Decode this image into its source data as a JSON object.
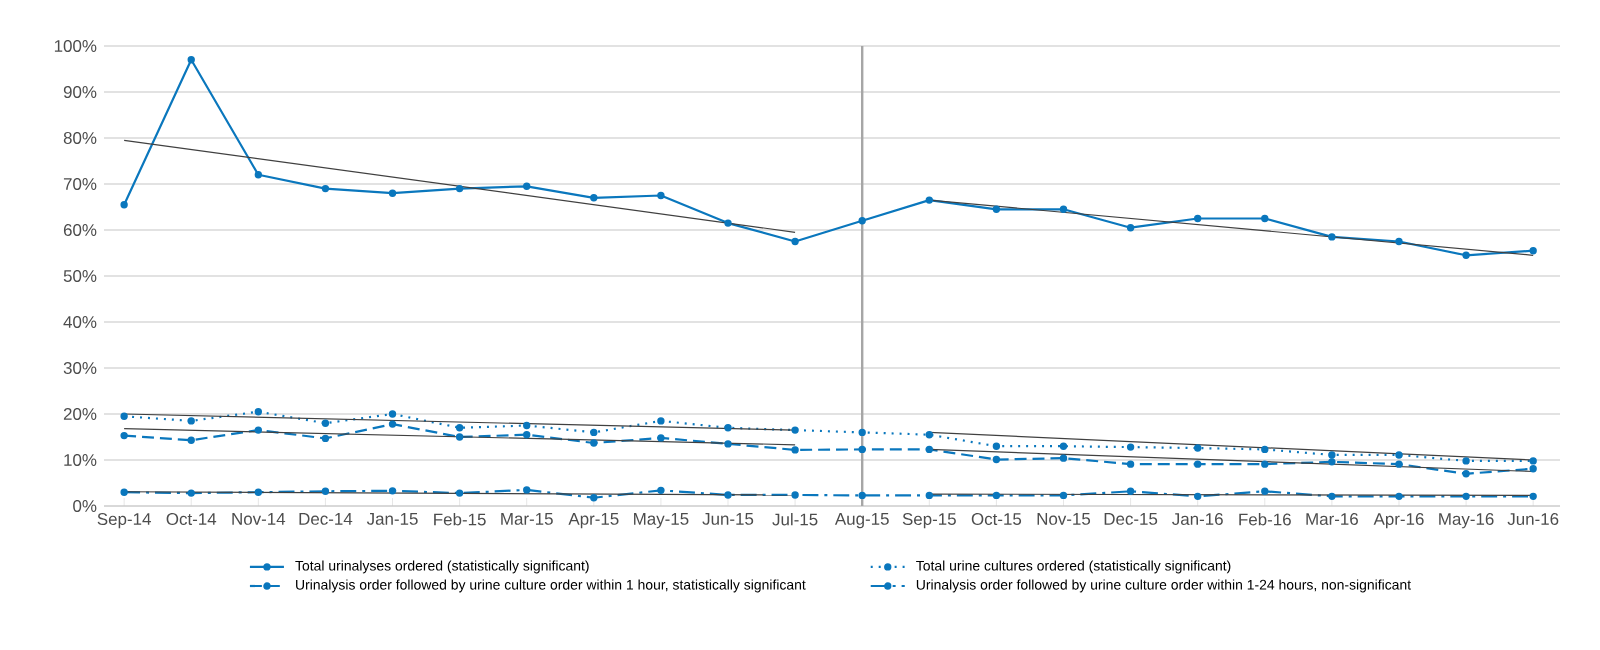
{
  "chart_data": {
    "type": "line",
    "categories": [
      "Sep-14",
      "Oct-14",
      "Nov-14",
      "Dec-14",
      "Jan-15",
      "Feb-15",
      "Mar-15",
      "Apr-15",
      "May-15",
      "Jun-15",
      "Jul-15",
      "Aug-15",
      "Sep-15",
      "Oct-15",
      "Nov-15",
      "Dec-15",
      "Jan-16",
      "Feb-16",
      "Mar-16",
      "Apr-16",
      "May-16",
      "Jun-16"
    ],
    "series": [
      {
        "name": "Total urinalyses ordered (statistically significant)",
        "color": "#0a77bd",
        "line_style": "solid",
        "marker": "circle",
        "values": [
          65.5,
          97,
          72,
          69,
          68,
          69,
          69.5,
          67,
          67.5,
          61.5,
          57.5,
          62,
          66.5,
          64.5,
          64.5,
          60.5,
          62.5,
          62.5,
          58.5,
          57.5,
          54.5,
          55.5
        ]
      },
      {
        "name": "Total urine cultures ordered (statistically significant)",
        "color": "#0a77bd",
        "line_style": "dotted",
        "marker": "circle",
        "values": [
          19.5,
          18.5,
          20.5,
          18,
          20,
          17,
          17.5,
          16,
          18.5,
          17,
          16.5,
          16,
          15.5,
          13,
          13,
          12.8,
          12.6,
          12.3,
          11.1,
          11.1,
          9.8,
          9.8
        ]
      },
      {
        "name": "Urinalysis order followed by urine culture order within 1 hour, statistically significant",
        "color": "#0a77bd",
        "line_style": "dashed",
        "marker": "circle",
        "values": [
          15.3,
          14.3,
          16.5,
          14.7,
          17.8,
          15,
          15.5,
          13.7,
          14.8,
          13.5,
          12.2,
          12.3,
          12.3,
          10.1,
          10.4,
          9.1,
          9.1,
          9.1,
          9.6,
          9.1,
          7,
          8.1
        ]
      },
      {
        "name": "Urinalysis order followed by urine culture order within 1-24 hours, non-significant",
        "color": "#0a77bd",
        "line_style": "dashdot",
        "marker": "circle",
        "values": [
          3,
          2.8,
          3,
          3.2,
          3.3,
          2.8,
          3.5,
          1.8,
          3.4,
          2.4,
          2.4,
          2.3,
          2.3,
          2.3,
          2.3,
          3.2,
          2.1,
          3.2,
          2.1,
          2.1,
          2.1,
          2.1
        ]
      },
      {
        "type": "line",
        "color": "#404040",
        "line_style": "solid",
        "marker": "none",
        "x": [
          "Sep-14",
          "Jul-15"
        ],
        "values": [
          79.5,
          59.5
        ]
      },
      {
        "type": "line",
        "color": "#404040",
        "line_style": "solid",
        "marker": "none",
        "x": [
          "Sep-15",
          "Jun-16"
        ],
        "values": [
          66.5,
          54.5
        ]
      },
      {
        "type": "line",
        "color": "#404040",
        "line_style": "solid",
        "marker": "none",
        "x": [
          "Sep-14",
          "Jul-15"
        ],
        "values": [
          20,
          16.5
        ]
      },
      {
        "type": "line",
        "color": "#404040",
        "line_style": "solid",
        "marker": "none",
        "x": [
          "Sep-15",
          "Jun-16"
        ],
        "values": [
          16,
          10
        ]
      },
      {
        "type": "line",
        "color": "#404040",
        "line_style": "solid",
        "marker": "none",
        "x": [
          "Sep-14",
          "Jul-15"
        ],
        "values": [
          16.8,
          13.3
        ]
      },
      {
        "type": "line",
        "color": "#404040",
        "line_style": "solid",
        "marker": "none",
        "x": [
          "Sep-15",
          "Jun-16"
        ],
        "values": [
          12.3,
          7.5
        ]
      },
      {
        "type": "line",
        "color": "#404040",
        "line_style": "solid",
        "marker": "none",
        "x": [
          "Sep-14",
          "Jul-15"
        ],
        "values": [
          3.1,
          2.4
        ]
      },
      {
        "type": "line",
        "color": "#404040",
        "line_style": "solid",
        "marker": "none",
        "x": [
          "Sep-15",
          "Jun-16"
        ],
        "values": [
          2.6,
          2.3
        ]
      }
    ],
    "ylim": [
      0,
      100
    ],
    "yticks": [
      {
        "value": 0,
        "label": "0%"
      },
      {
        "value": 10,
        "label": "10%"
      },
      {
        "value": 20,
        "label": "20%"
      },
      {
        "value": 30,
        "label": "30%"
      },
      {
        "value": 40,
        "label": "40%"
      },
      {
        "value": 50,
        "label": "50%"
      },
      {
        "value": 60,
        "label": "60%"
      },
      {
        "value": 70,
        "label": "70%"
      },
      {
        "value": 80,
        "label": "80%"
      },
      {
        "value": 90,
        "label": "90%"
      },
      {
        "value": 100,
        "label": "100%"
      }
    ],
    "ref_lines": [
      {
        "axis": "x",
        "value": "Aug-15",
        "color": "#a6a6a6"
      }
    ],
    "grid": "y",
    "legend": "bottom"
  }
}
